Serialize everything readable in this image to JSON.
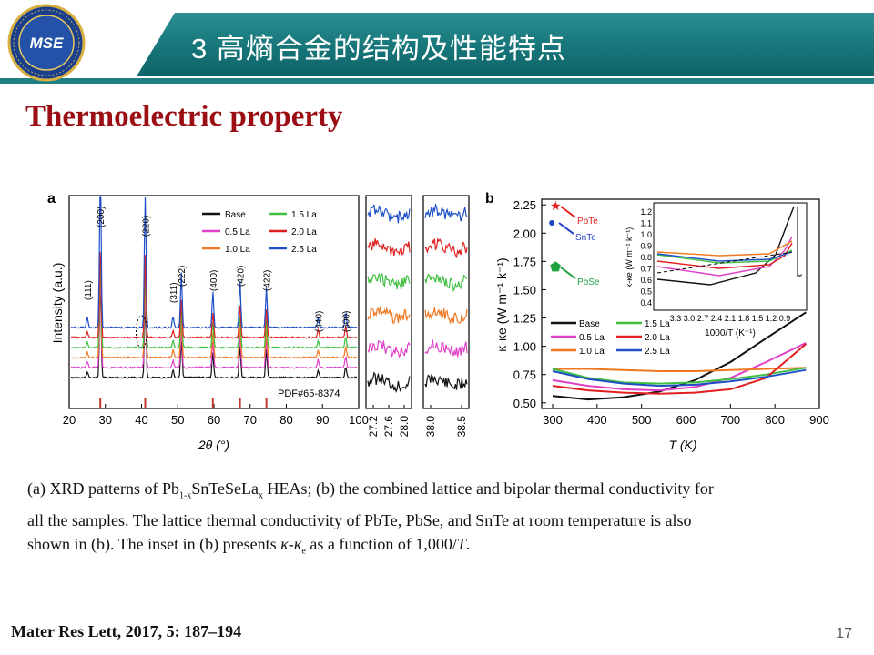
{
  "header": {
    "title": "3  高熵合金的结构及性能特点",
    "logo_text": "MSE"
  },
  "slide_title": "Thermoelectric property",
  "figure": {
    "panel_a": {
      "label": "a",
      "ylabel": "Intensity (a.u.)",
      "xlabel": "2θ (°)",
      "xticks": [
        "20",
        "30",
        "40",
        "50",
        "60",
        "70",
        "80",
        "90",
        "100"
      ],
      "peaks": [
        "(111)",
        "(200)",
        "(220)",
        "(311)",
        "(222)",
        "(400)",
        "(420)",
        "(422)",
        "(440)",
        "(600)"
      ],
      "legend": [
        "Base",
        "1.5 La",
        "0.5 La",
        "2.0 La",
        "1.0 La",
        "2.5 La"
      ],
      "pdf_label": "PDF#65-8374",
      "zoom1_ticks": [
        "27.2",
        "27.6",
        "28.0"
      ],
      "zoom2_ticks": [
        "38.0",
        "38.5"
      ]
    },
    "panel_b": {
      "label": "b",
      "ylabel": "κ-κe (W m⁻¹ k⁻¹)",
      "xlabel": "T (K)",
      "yticks": [
        "2.25",
        "2.00",
        "1.75",
        "1.50",
        "1.25",
        "1.00",
        "0.75",
        "0.50"
      ],
      "xticks": [
        "300",
        "400",
        "500",
        "600",
        "700",
        "800",
        "900"
      ],
      "markers": [
        "PbTe",
        "SnTe",
        "PbSe"
      ],
      "legend": [
        "Base",
        "1.5 La",
        "0.5 La",
        "2.0 La",
        "1.0 La",
        "2.5 La"
      ],
      "inset_ylabel": "κ-κe (W m⁻¹ k⁻¹)",
      "inset_xlabel": "1000/T (K⁻¹)",
      "inset_yticks": [
        "1.2",
        "1.1",
        "1.0",
        "0.9",
        "0.8",
        "0.7",
        "0.6",
        "0.5",
        "0.4"
      ],
      "inset_xticks": "3.3 3.0 2.7 2.4 2.1 1.8 1.5 1.2 0.9",
      "inset_annot": "κ"
    },
    "colors": {
      "Base": "#111111",
      "0.5 La": "#e040c8",
      "1.0 La": "#f07820",
      "1.5 La": "#40c040",
      "2.0 La": "#e02020",
      "2.5 La": "#2050c8"
    }
  },
  "caption": {
    "line1_a": "(a) XRD patterns of Pb",
    "line1_sub1": "1-x",
    "line1_b": "SnTeSeLa",
    "line1_sub2": "x",
    "line1_c": " HEAs; (b) the combined lattice and bipolar thermal conductivity for",
    "line2": "all the samples. The lattice thermal conductivity of PbTe, PbSe, and SnTe at room temperature is also",
    "line3_a": "shown in (b). The inset in (b) presents ",
    "line3_k": "κ-κ",
    "line3_sub": "e",
    "line3_b": " as a function of 1,000/",
    "line3_T": "T",
    "line3_c": "."
  },
  "footer": {
    "reference": "Mater Res Lett, 2017, 5: 187–194",
    "page_number": "17"
  }
}
